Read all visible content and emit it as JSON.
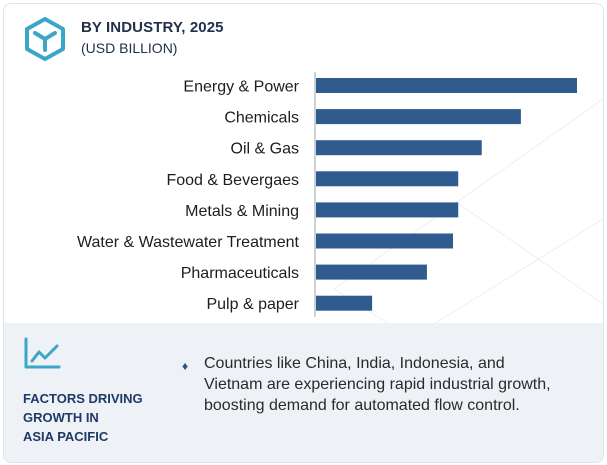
{
  "header": {
    "title": "BY INDUSTRY, 2025",
    "subtitle": "(USD BILLION)"
  },
  "icons": {
    "logo": "hexagon-cube-logo-icon",
    "trend": "trend-line-icon",
    "bullet": "diamond-bullet-icon"
  },
  "colors": {
    "bar": "#2f5b8f",
    "accent": "#3aa6c8",
    "heading": "#1f3a66",
    "panel_bg": "#eef1f6"
  },
  "chart_data": {
    "type": "bar",
    "orientation": "horizontal",
    "title": "BY INDUSTRY, 2025",
    "subtitle": "(USD BILLION)",
    "categories": [
      "Energy & Power",
      "Chemicals",
      "Oil & Gas",
      "Food & Bevergaes",
      "Metals & Mining",
      "Water & Wastewater Treatment",
      "Pharmaceuticals",
      "Pulp & paper"
    ],
    "values": [
      100,
      78.5,
      63.5,
      54.5,
      54.5,
      52.5,
      42.5,
      21.5
    ],
    "xlim": [
      0,
      100
    ],
    "grid": false,
    "legend": "none"
  },
  "factors": {
    "heading_lines": [
      "FACTORS DRIVING",
      "GROWTH IN",
      "ASIA PACIFIC"
    ],
    "bullet_char": "♦",
    "text": "Countries like China, India, Indonesia, and Vietnam are experiencing rapid industrial growth, boosting demand for automated flow control."
  }
}
